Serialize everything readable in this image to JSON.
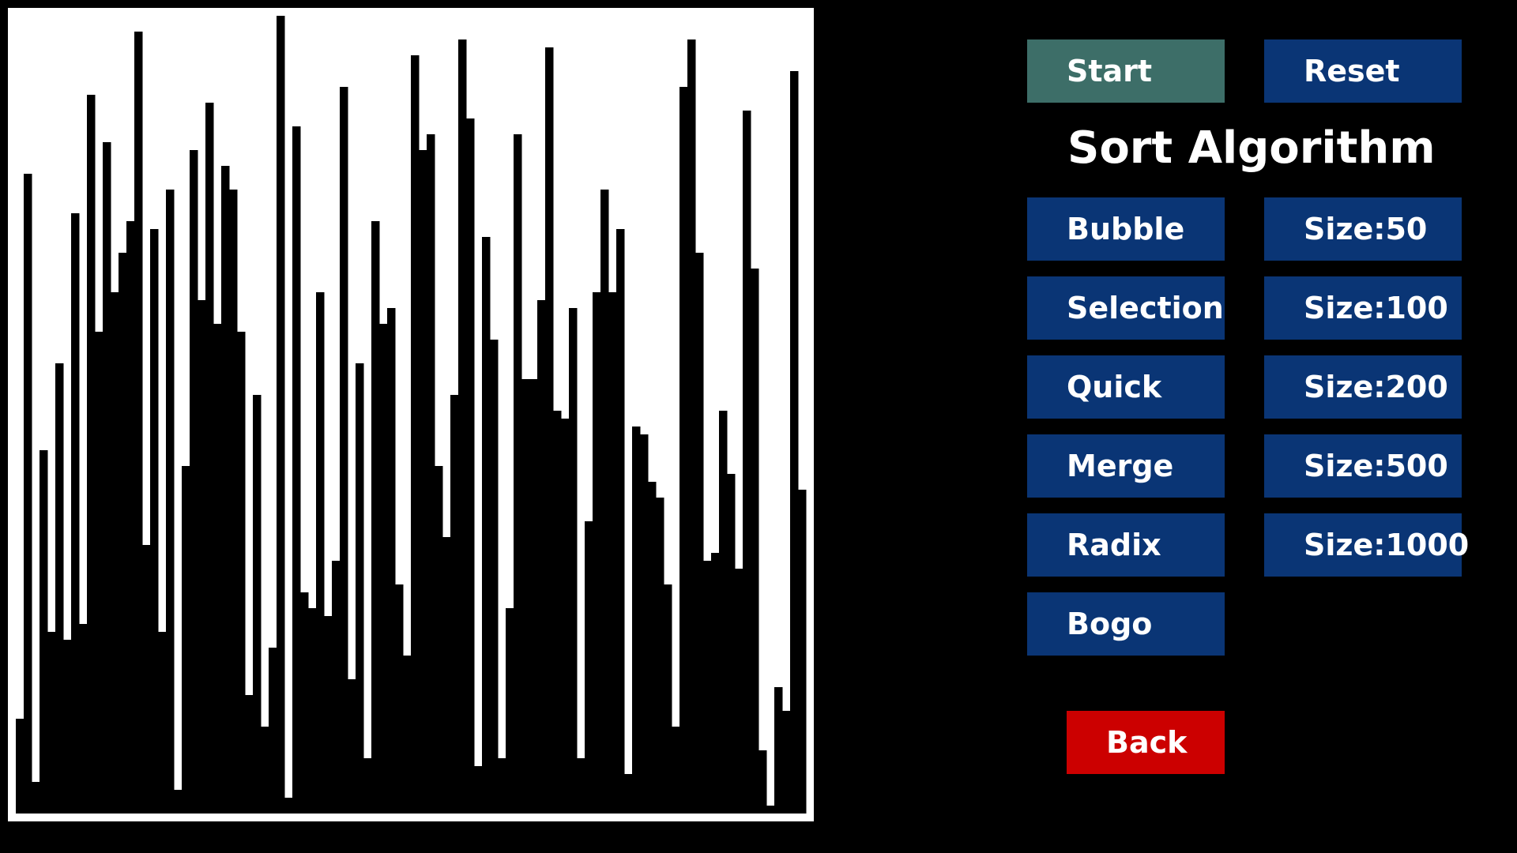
{
  "colors": {
    "background": "#000000",
    "canvas_background": "#ffffff",
    "bar_fill": "#000000",
    "start_button": "#3d6e68",
    "option_button": "#0a3575",
    "back_button": "#cc0000",
    "text": "#ffffff"
  },
  "controls": {
    "start_label": "Start",
    "reset_label": "Reset",
    "back_label": "Back"
  },
  "panel": {
    "title": "Sort Algorithm"
  },
  "algorithms": [
    "Bubble",
    "Selection",
    "Quick",
    "Merge",
    "Radix",
    "Bogo"
  ],
  "sizes": [
    "Size:50",
    "Size:100",
    "Size:200",
    "Size:500",
    "Size:1000"
  ],
  "array_values": [
    12,
    81,
    4,
    46,
    23,
    57,
    22,
    76,
    24,
    91,
    61,
    85,
    66,
    71,
    75,
    99,
    34,
    74,
    23,
    79,
    3,
    44,
    84,
    65,
    90,
    62,
    82,
    79,
    61,
    15,
    53,
    11,
    21,
    101,
    2,
    87,
    28,
    26,
    66,
    25,
    32,
    92,
    17,
    57,
    7,
    75,
    62,
    64,
    29,
    20,
    96,
    84,
    86,
    44,
    35,
    53,
    98,
    88,
    6,
    73,
    60,
    7,
    26,
    86,
    55,
    55,
    65,
    97,
    51,
    50,
    64,
    7,
    37,
    66,
    79,
    66,
    74,
    5,
    49,
    48,
    42,
    40,
    29,
    11,
    92,
    98,
    71,
    32,
    33,
    51,
    43,
    31,
    89,
    69,
    8,
    1,
    16,
    13,
    94,
    41
  ]
}
